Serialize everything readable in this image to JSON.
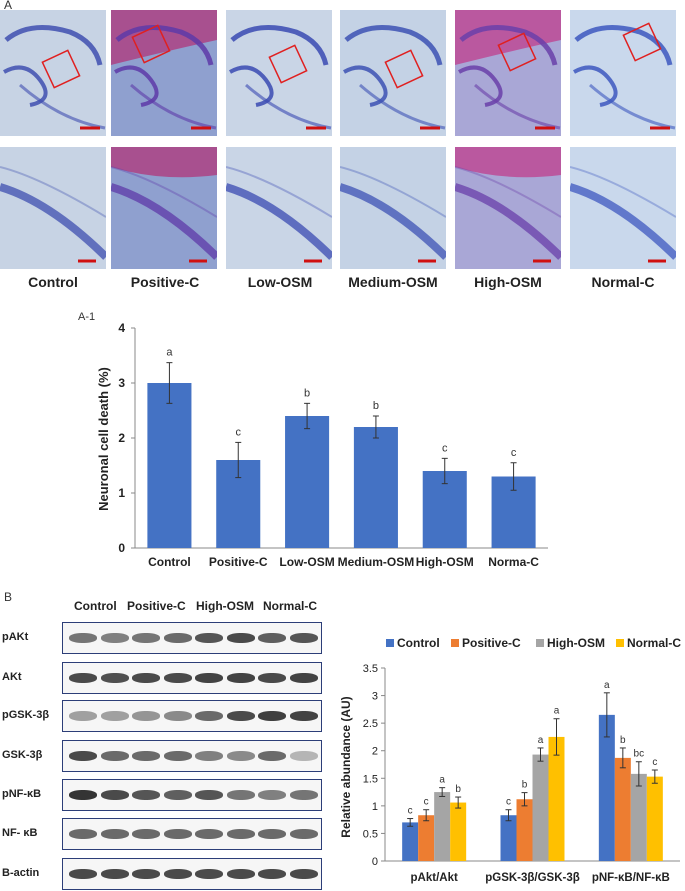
{
  "panel_a": {
    "label": "A",
    "conditions": [
      "Control",
      "Positive-C",
      "Low-OSM",
      "Medium-OSM",
      "High-OSM",
      "Normal-C"
    ],
    "tissue_colors": [
      "#c7d3e4",
      "#8fa0cf",
      "#c9d5e6",
      "#c4d2e5",
      "#a9a7d6",
      "#c9d8ec"
    ],
    "stain_colors": [
      "#3f4fb0",
      "#5e3aa8",
      "#3a4ab2",
      "#3d52b4",
      "#6a3fa9",
      "#3d58c0"
    ],
    "highlight_colors": [
      "",
      "#b0357a",
      "",
      "",
      "#c03d8c",
      ""
    ]
  },
  "chart_a1": {
    "panel_label": "A-1",
    "chart_data": {
      "type": "bar",
      "categories": [
        "Control",
        "Positive-C",
        "Low-OSM",
        "Medium-OSM",
        "High-OSM",
        "Norma-C"
      ],
      "values": [
        3.0,
        1.6,
        2.4,
        2.2,
        1.4,
        1.3
      ],
      "errors": [
        0.37,
        0.32,
        0.23,
        0.2,
        0.23,
        0.25
      ],
      "significance": [
        "a",
        "c",
        "b",
        "b",
        "c",
        "c"
      ],
      "ylabel": "Neuronal cell death (%)",
      "xlabel": "",
      "ylim": [
        0,
        4
      ],
      "yticks": [
        "0",
        "1",
        "2",
        "3",
        "4"
      ],
      "color": "#4472c4"
    }
  },
  "panel_b": {
    "label": "B",
    "lane_groups": [
      "Control",
      "Positive-C",
      "High-OSM",
      "Normal-C"
    ],
    "blots": [
      {
        "label": "pAKt",
        "intensity": [
          0.55,
          0.5,
          0.55,
          0.6,
          0.7,
          0.75,
          0.65,
          0.7
        ]
      },
      {
        "label": "AKt",
        "intensity": [
          0.75,
          0.72,
          0.75,
          0.75,
          0.78,
          0.78,
          0.75,
          0.78
        ]
      },
      {
        "label": "pGSK-3β",
        "intensity": [
          0.35,
          0.35,
          0.4,
          0.45,
          0.6,
          0.75,
          0.8,
          0.78
        ]
      },
      {
        "label": "GSK-3β",
        "intensity": [
          0.75,
          0.6,
          0.6,
          0.6,
          0.5,
          0.45,
          0.6,
          0.25
        ]
      },
      {
        "label": "pNF-κB",
        "intensity": [
          0.85,
          0.75,
          0.7,
          0.65,
          0.7,
          0.55,
          0.5,
          0.55
        ]
      },
      {
        "label": "NF- κB",
        "intensity": [
          0.6,
          0.6,
          0.6,
          0.6,
          0.6,
          0.6,
          0.6,
          0.6
        ]
      },
      {
        "label": "B-actin",
        "intensity": [
          0.75,
          0.75,
          0.75,
          0.75,
          0.75,
          0.75,
          0.75,
          0.75
        ]
      }
    ]
  },
  "chart_b": {
    "chart_data": {
      "type": "bar",
      "categories": [
        "pAkt/Akt",
        "pGSK-3β/GSK-3β",
        "pNF-κB/NF-κB"
      ],
      "series": [
        {
          "name": "Control",
          "color": "#4472c4",
          "values": [
            0.7,
            0.83,
            2.65
          ],
          "errors": [
            0.07,
            0.1,
            0.4
          ],
          "sig": [
            "c",
            "c",
            "a"
          ]
        },
        {
          "name": "Positive-C",
          "color": "#ed7d31",
          "values": [
            0.83,
            1.12,
            1.87
          ],
          "errors": [
            0.1,
            0.12,
            0.18
          ],
          "sig": [
            "c",
            "b",
            "b"
          ]
        },
        {
          "name": "High-OSM",
          "color": "#a5a5a5",
          "values": [
            1.25,
            1.93,
            1.58
          ],
          "errors": [
            0.08,
            0.12,
            0.22
          ],
          "sig": [
            "a",
            "a",
            "bc"
          ]
        },
        {
          "name": "Normal-C",
          "color": "#ffc000",
          "values": [
            1.06,
            2.25,
            1.53
          ],
          "errors": [
            0.1,
            0.33,
            0.12
          ],
          "sig": [
            "b",
            "a",
            "c"
          ]
        }
      ],
      "ylabel": "Relative abundance (AU)",
      "xlabel": "",
      "ylim": [
        0,
        3.5
      ],
      "yticks": [
        "0",
        "0.5",
        "1",
        "1.5",
        "2",
        "2.5",
        "3",
        "3.5"
      ],
      "legend": "top"
    }
  }
}
